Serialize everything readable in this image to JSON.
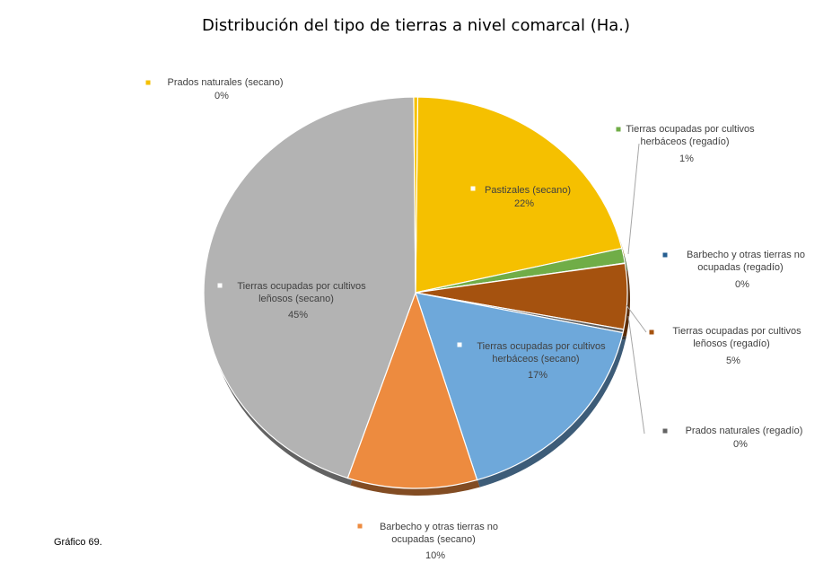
{
  "caption": "Gráfico 69.",
  "chart_data": {
    "type": "pie",
    "title": "Distribución del tipo de tierras a nivel comarcal (Ha.)",
    "slices": [
      {
        "name": "Pastizales (secano)",
        "value": 22,
        "label": "22%",
        "color": "#f5c000",
        "start_deg": 0.6
      },
      {
        "name": "Tierras ocupadas por cultivos herbáceos (regadío)",
        "value": 1,
        "label": "1%",
        "color": "#70ad47",
        "start_deg": 76.9
      },
      {
        "name": "Barbecho y otras tierras no ocupadas (regadío)",
        "value": 0,
        "label": "0%",
        "color": "#255e91",
        "start_deg": 81.3
      },
      {
        "name": "Tierras ocupadas por cultivos leñosos (regadío)",
        "value": 5,
        "label": "5%",
        "color": "#a5520f",
        "start_deg": 81.4
      },
      {
        "name": "Prados naturales (regadío)",
        "value": 0,
        "label": "0%",
        "color": "#636363",
        "start_deg": 100.8
      },
      {
        "name": "Tierras ocupadas por cultivos herbáceos (secano)",
        "value": 17,
        "label": "17%",
        "color": "#6ea8da",
        "start_deg": 101.8
      },
      {
        "name": "Barbecho y otras tierras no ocupadas (secano)",
        "value": 10,
        "label": "10%",
        "color": "#ed8b3f",
        "start_deg": 163.1
      },
      {
        "name": "Tierras ocupadas por cultivos leñosos (secano)",
        "value": 45,
        "label": "45%",
        "color": "#b3b3b3",
        "start_deg": 198.7
      },
      {
        "name": "Prados naturales (secano)",
        "value": 0,
        "label": "0%",
        "color": "#f5c000",
        "start_deg": 359.5
      }
    ]
  }
}
